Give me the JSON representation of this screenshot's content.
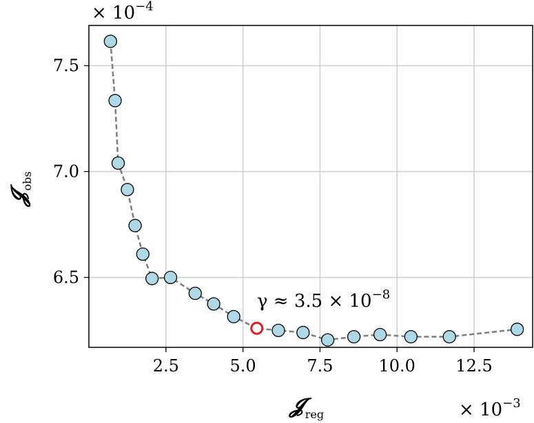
{
  "chart_data": {
    "type": "scatter",
    "x_scale_label": "× 10",
    "x_scale_exp": "−3",
    "y_scale_label": "× 10",
    "y_scale_exp": "−4",
    "xlabel_main": "𝓙",
    "xlabel_sub": "reg",
    "ylabel_main": "𝓙",
    "ylabel_sub": "obs",
    "xlim": [
      0.0,
      14.4
    ],
    "ylim": [
      6.17,
      7.69
    ],
    "xticks": [
      2.5,
      5.0,
      7.5,
      10.0,
      12.5
    ],
    "xtick_labels": [
      "2.5",
      "5.0",
      "7.5",
      "10.0",
      "12.5"
    ],
    "yticks": [
      6.5,
      7.0,
      7.5
    ],
    "ytick_labels": [
      "6.5",
      "7.0",
      "7.5"
    ],
    "grid": true,
    "line_style": "dashed",
    "line_color": "#808080",
    "marker_fill": "#add8e6",
    "marker_edge": "#000000",
    "highlight_color": "#e41a1c",
    "points": [
      {
        "x": 0.7,
        "y": 7.615
      },
      {
        "x": 0.85,
        "y": 7.335
      },
      {
        "x": 0.95,
        "y": 7.04
      },
      {
        "x": 1.25,
        "y": 6.915
      },
      {
        "x": 1.5,
        "y": 6.745
      },
      {
        "x": 1.75,
        "y": 6.61
      },
      {
        "x": 2.05,
        "y": 6.495
      },
      {
        "x": 2.65,
        "y": 6.5
      },
      {
        "x": 3.45,
        "y": 6.425
      },
      {
        "x": 4.05,
        "y": 6.375
      },
      {
        "x": 4.7,
        "y": 6.315
      },
      {
        "x": 6.15,
        "y": 6.25
      },
      {
        "x": 6.95,
        "y": 6.24
      },
      {
        "x": 7.75,
        "y": 6.205
      },
      {
        "x": 8.6,
        "y": 6.22
      },
      {
        "x": 9.45,
        "y": 6.23
      },
      {
        "x": 10.45,
        "y": 6.22
      },
      {
        "x": 11.7,
        "y": 6.22
      },
      {
        "x": 13.9,
        "y": 6.255
      }
    ],
    "highlight": {
      "x": 5.45,
      "y": 6.26
    },
    "annotation": {
      "prefix": "γ ≈ 3.5 × 10",
      "exp": "−8"
    }
  }
}
